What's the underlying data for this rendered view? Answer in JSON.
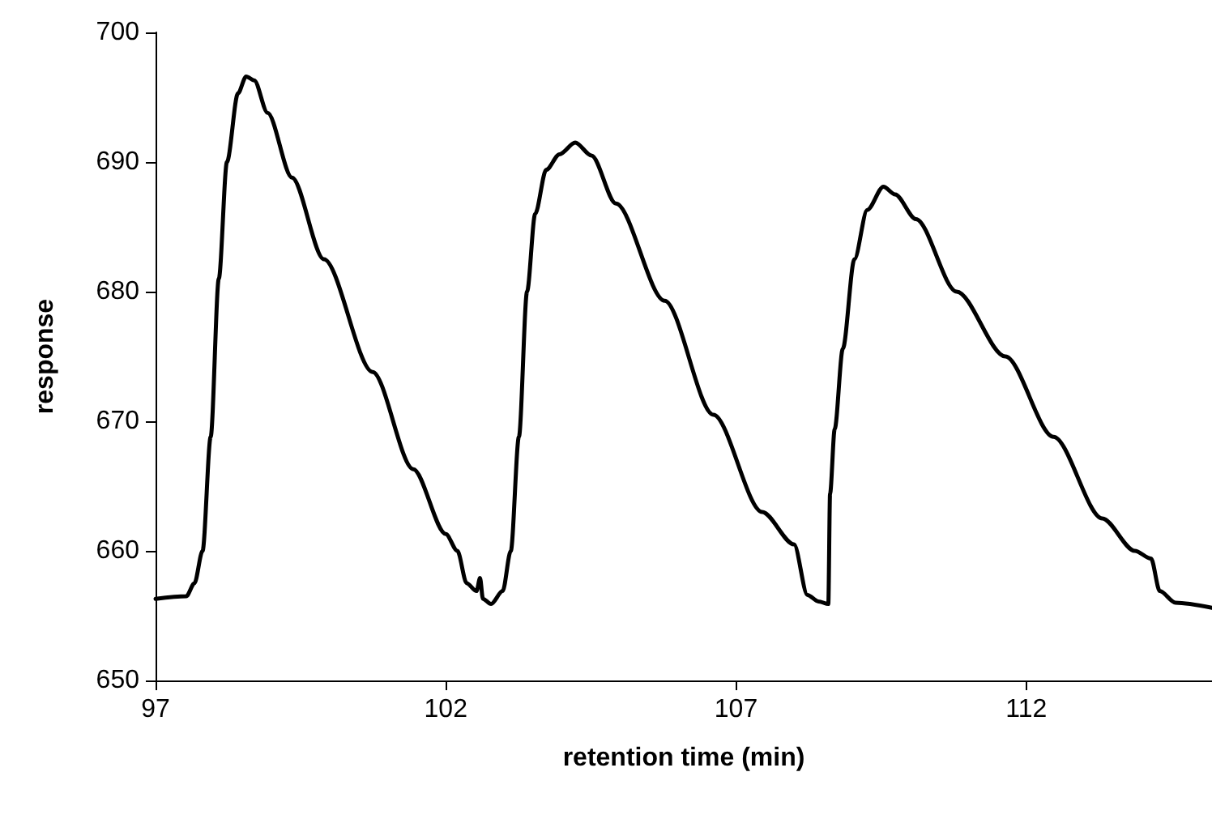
{
  "chart_data": {
    "type": "line",
    "xlabel": "retention time (min)",
    "ylabel": "response",
    "xlim": [
      97,
      115.2
    ],
    "xticks": [
      97,
      102,
      107,
      112
    ],
    "ylim": [
      650,
      700
    ],
    "yticks": [
      650,
      660,
      670,
      680,
      690,
      700
    ],
    "marker": "none",
    "line_style": "solid",
    "series": [
      {
        "color": "#000000",
        "x": [
          97,
          97.53,
          97.67,
          97.81,
          97.95,
          98.09,
          98.23,
          98.42,
          98.56,
          98.7,
          98.93,
          99.35,
          99.9,
          100.74,
          101.44,
          102.0,
          102.2,
          102.36,
          102.53,
          102.59,
          102.64,
          102.78,
          102.98,
          103.12,
          103.26,
          103.4,
          103.54,
          103.73,
          103.96,
          104.23,
          104.51,
          104.93,
          105.77,
          106.61,
          107.45,
          108.0,
          108.23,
          108.42,
          108.59,
          108.62,
          108.7,
          108.84,
          109.04,
          109.26,
          109.54,
          109.74,
          110.1,
          110.8,
          111.64,
          112.47,
          113.31,
          113.87,
          114.15,
          114.3,
          114.57,
          115.2
        ],
        "values": [
          656.3,
          656.5,
          657.5,
          660,
          668.8,
          681,
          690,
          695.3,
          696.6,
          696.3,
          693.8,
          688.8,
          682.5,
          673.8,
          666.3,
          661.3,
          660,
          657.5,
          656.9,
          657.9,
          656.3,
          655.9,
          656.9,
          660,
          668.8,
          680,
          686,
          689.4,
          690.6,
          691.5,
          690.5,
          686.8,
          679.3,
          670.5,
          663,
          660.5,
          656.6,
          656.1,
          655.9,
          664.4,
          669.4,
          675.6,
          682.5,
          686.3,
          688.1,
          687.5,
          685.6,
          680,
          675,
          668.8,
          662.5,
          660,
          659.4,
          656.9,
          656,
          655.6
        ]
      }
    ]
  }
}
